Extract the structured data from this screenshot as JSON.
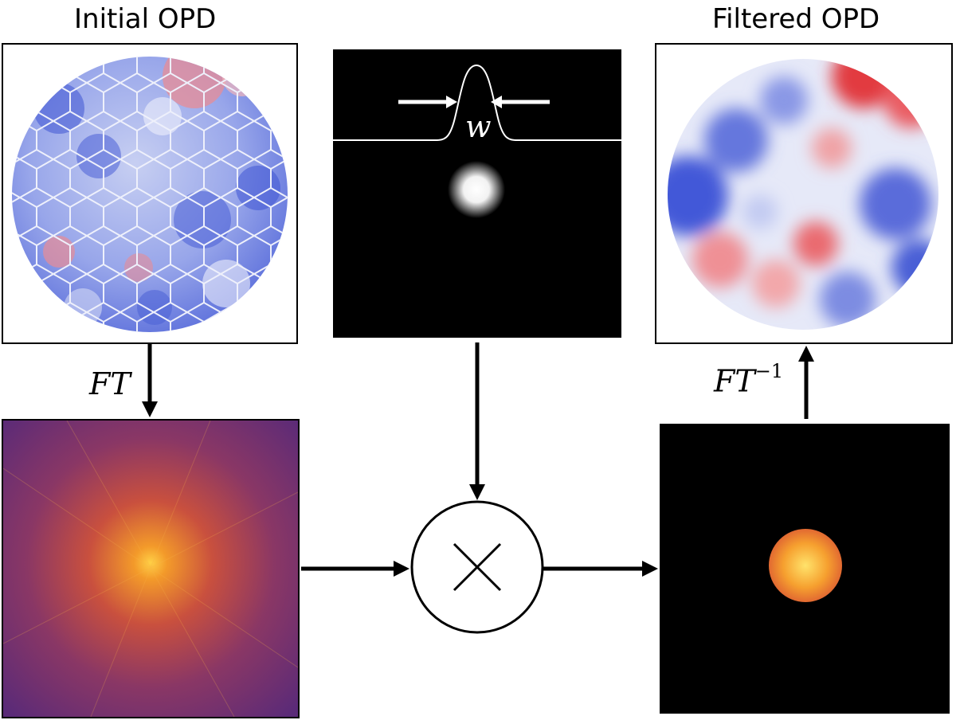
{
  "titles": {
    "initial": "Initial OPD",
    "filtered": "Filtered OPD"
  },
  "labels": {
    "ft": "FT",
    "ift_base": "FT",
    "ift_exp": "−1",
    "width": "w"
  },
  "colors": {
    "opd_blue": "#4a5fd6",
    "opd_red": "#e0343a",
    "spectrum_dark": "#5a2a78",
    "spectrum_hot": "#f5a623",
    "arrow": "#000000",
    "background": "#ffffff"
  }
}
